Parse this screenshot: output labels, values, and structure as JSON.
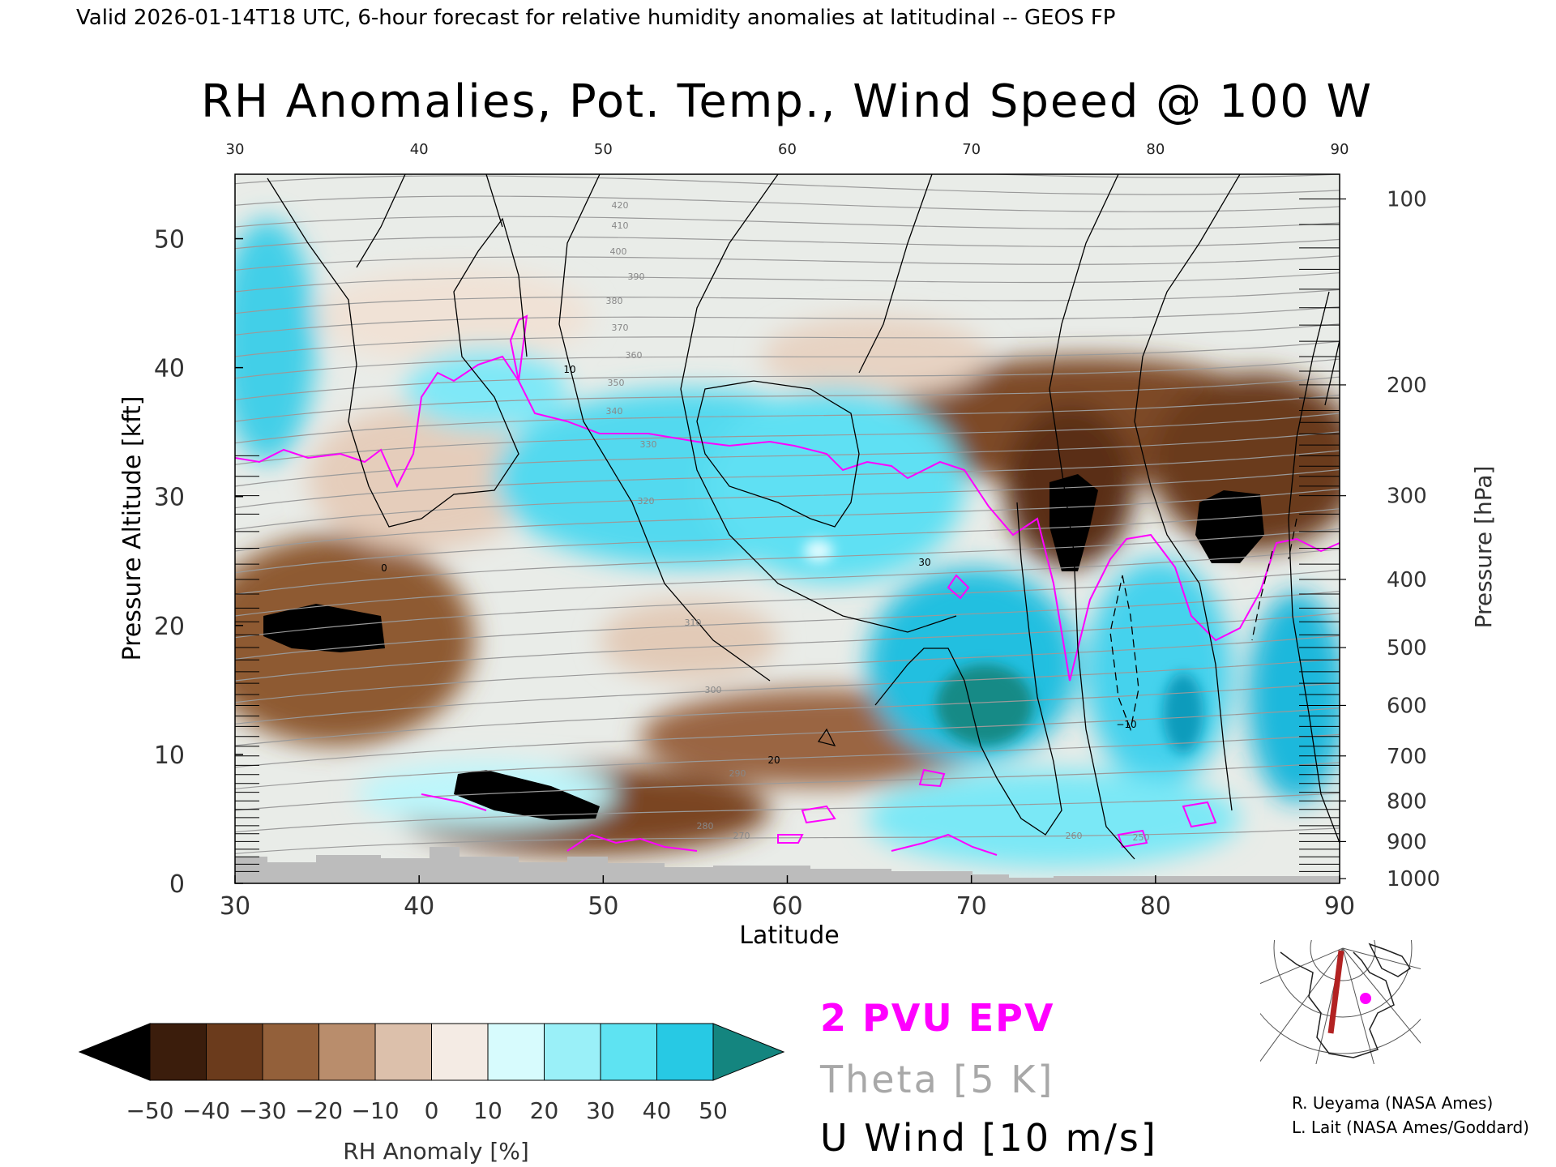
{
  "header": {
    "valid_line": "Valid 2026-01-14T18 UTC, 6-hour forecast for relative humidity anomalies at latitudinal -- GEOS FP",
    "title": "RH Anomalies, Pot. Temp., Wind Speed @ 100 W"
  },
  "chart_data": {
    "type": "heatmap",
    "title": "RH Anomalies, Pot. Temp., Wind Speed @ 100 W",
    "xlabel": "Latitude",
    "ylabel": "Pressure Altitude [kft]",
    "y2label": "Pressure [hPa]",
    "xlim": [
      30,
      90
    ],
    "ylim": [
      0,
      55
    ],
    "x_ticks": [
      "30",
      "40",
      "50",
      "60",
      "70",
      "80",
      "90"
    ],
    "top_ticks": [
      "30",
      "40",
      "50",
      "60",
      "70",
      "80",
      "90"
    ],
    "y_ticks": [
      "0",
      "10",
      "20",
      "30",
      "40",
      "50"
    ],
    "pressure_ticks": [
      "1000",
      "900",
      "800",
      "700",
      "600",
      "500",
      "400",
      "300",
      "200",
      "100"
    ],
    "colorbar": {
      "label": "RH Anomaly [%]",
      "tick_labels": [
        "−50",
        "−40",
        "−30",
        "−20",
        "−10",
        "0",
        "10",
        "20",
        "30",
        "40",
        "50"
      ],
      "colors": [
        "#000000",
        "#3b1d0c",
        "#6b3b1c",
        "#93603a",
        "#b98d6c",
        "#dcc0ab",
        "#f4ebe4",
        "#d7fbfd",
        "#9af0f8",
        "#5ee3f2",
        "#27c9e4",
        "#0a9bbc",
        "#14857f"
      ]
    },
    "theta_labels": [
      "420",
      "410",
      "400",
      "390",
      "380",
      "370",
      "360",
      "350",
      "340",
      "330",
      "320",
      "310",
      "300",
      "290",
      "280",
      "270",
      "260",
      "250"
    ],
    "wind_labels": [
      "0",
      "10",
      "20",
      "30",
      "−10"
    ],
    "legend": {
      "epv": "2 PVU EPV",
      "theta": "Theta [5 K]",
      "wind": "U Wind [10 m/s]"
    },
    "colors": {
      "epv": "#ff00ff",
      "theta": "#aaaaaa",
      "wind": "#000000",
      "terrain": "#bcbcbc",
      "map_section": "#b22222"
    }
  },
  "credits": {
    "line1": "R. Ueyama (NASA Ames)",
    "line2": "L. Lait (NASA Ames/Goddard)"
  }
}
